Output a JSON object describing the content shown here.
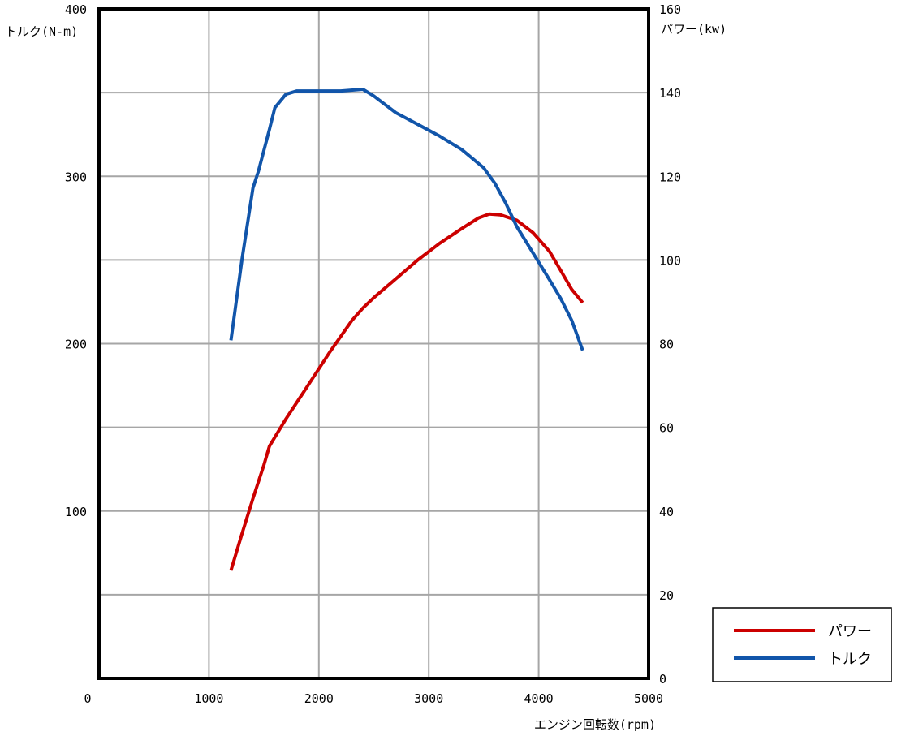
{
  "chart_data": {
    "type": "line",
    "x_axis": {
      "label": "エンジン回転数(rpm)",
      "range": [
        0,
        5000
      ],
      "ticks": [
        0,
        1000,
        2000,
        3000,
        4000,
        5000
      ]
    },
    "y_axis_left": {
      "label": "トルク(N-m)",
      "range": [
        0,
        400
      ],
      "ticks": [
        100,
        200,
        300,
        400
      ]
    },
    "y_axis_right": {
      "label": "パワー(kw)",
      "range": [
        0,
        160
      ],
      "ticks": [
        0,
        20,
        40,
        60,
        80,
        100,
        120,
        140,
        160
      ]
    },
    "grid": true,
    "legend_position": "bottom-right",
    "series": [
      {
        "name": "パワー",
        "color": "#cc0000",
        "axis": "right",
        "points": [
          [
            1200,
            25.8
          ],
          [
            1300,
            34.5
          ],
          [
            1400,
            43.0
          ],
          [
            1500,
            51.0
          ],
          [
            1550,
            55.5
          ],
          [
            1700,
            62.0
          ],
          [
            1900,
            70.0
          ],
          [
            2100,
            78.0
          ],
          [
            2300,
            85.5
          ],
          [
            2400,
            88.5
          ],
          [
            2500,
            91.0
          ],
          [
            2700,
            95.5
          ],
          [
            2900,
            100.0
          ],
          [
            3100,
            104.0
          ],
          [
            3300,
            107.5
          ],
          [
            3450,
            110.0
          ],
          [
            3550,
            111.0
          ],
          [
            3650,
            110.8
          ],
          [
            3800,
            109.5
          ],
          [
            3950,
            106.5
          ],
          [
            4100,
            102.0
          ],
          [
            4200,
            97.5
          ],
          [
            4300,
            93.0
          ],
          [
            4400,
            89.8
          ]
        ]
      },
      {
        "name": "トルク",
        "color": "#1155aa",
        "axis": "left",
        "points": [
          [
            1200,
            202
          ],
          [
            1300,
            250
          ],
          [
            1400,
            293
          ],
          [
            1450,
            303
          ],
          [
            1550,
            328
          ],
          [
            1600,
            341
          ],
          [
            1700,
            349
          ],
          [
            1800,
            351
          ],
          [
            2000,
            351
          ],
          [
            2200,
            351
          ],
          [
            2400,
            352
          ],
          [
            2500,
            348
          ],
          [
            2700,
            338
          ],
          [
            2900,
            331
          ],
          [
            3100,
            324
          ],
          [
            3300,
            316
          ],
          [
            3500,
            305
          ],
          [
            3600,
            296
          ],
          [
            3700,
            284
          ],
          [
            3800,
            270
          ],
          [
            3950,
            254
          ],
          [
            4100,
            238
          ],
          [
            4200,
            227
          ],
          [
            4300,
            214
          ],
          [
            4400,
            196
          ]
        ]
      }
    ]
  }
}
